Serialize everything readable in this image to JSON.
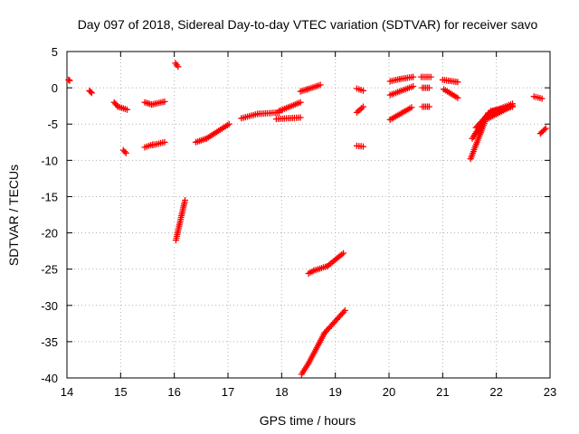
{
  "chart_data": {
    "type": "scatter",
    "title": "Day 097 of 2018, Sidereal Day-to-day VTEC variation (SDTVAR) for receiver savo",
    "xlabel": "GPS time / hours",
    "ylabel": "SDTVAR / TECUs",
    "xlim": [
      14,
      23
    ],
    "ylim": [
      -40,
      5
    ],
    "xticks": [
      "14",
      "15",
      "16",
      "17",
      "18",
      "19",
      "20",
      "21",
      "22",
      "23"
    ],
    "yticks": [
      "5",
      "0",
      "-5",
      "-10",
      "-15",
      "-20",
      "-25",
      "-30",
      "-35",
      "-40"
    ],
    "grid": true,
    "marker": "plus",
    "color": "#ff0000",
    "segments": [
      {
        "x0": 14.03,
        "x1": 14.05,
        "y0": 1.1,
        "y1": 1.0
      },
      {
        "x0": 14.42,
        "x1": 14.46,
        "y0": -0.4,
        "y1": -0.7
      },
      {
        "x0": 14.88,
        "x1": 14.95,
        "y0": -2.0,
        "y1": -2.6
      },
      {
        "x0": 14.95,
        "x1": 15.12,
        "y0": -2.6,
        "y1": -3.0
      },
      {
        "x0": 15.05,
        "x1": 15.1,
        "y0": -8.6,
        "y1": -9.0
      },
      {
        "x0": 15.45,
        "x1": 15.58,
        "y0": -2.0,
        "y1": -2.3
      },
      {
        "x0": 15.58,
        "x1": 15.82,
        "y0": -2.3,
        "y1": -1.9
      },
      {
        "x0": 15.45,
        "x1": 15.6,
        "y0": -8.2,
        "y1": -7.8
      },
      {
        "x0": 15.6,
        "x1": 15.82,
        "y0": -7.9,
        "y1": -7.5
      },
      {
        "x0": 16.02,
        "x1": 16.07,
        "y0": 3.4,
        "y1": 2.9
      },
      {
        "x0": 16.03,
        "x1": 16.2,
        "y0": -21.0,
        "y1": -15.5
      },
      {
        "x0": 16.4,
        "x1": 16.6,
        "y0": -7.5,
        "y1": -7.0
      },
      {
        "x0": 16.6,
        "x1": 17.02,
        "y0": -7.0,
        "y1": -5.0
      },
      {
        "x0": 17.25,
        "x1": 17.55,
        "y0": -4.2,
        "y1": -3.6
      },
      {
        "x0": 17.55,
        "x1": 17.95,
        "y0": -3.6,
        "y1": -3.4
      },
      {
        "x0": 17.95,
        "x1": 18.35,
        "y0": -3.2,
        "y1": -2.0
      },
      {
        "x0": 17.9,
        "x1": 18.35,
        "y0": -4.3,
        "y1": -4.1
      },
      {
        "x0": 18.35,
        "x1": 18.48,
        "y0": -0.5,
        "y1": -0.2
      },
      {
        "x0": 18.48,
        "x1": 18.72,
        "y0": -0.2,
        "y1": 0.4
      },
      {
        "x0": 18.5,
        "x1": 18.6,
        "y0": -25.6,
        "y1": -25.2
      },
      {
        "x0": 18.6,
        "x1": 18.85,
        "y0": -25.2,
        "y1": -24.6
      },
      {
        "x0": 18.85,
        "x1": 19.15,
        "y0": -24.6,
        "y1": -22.8
      },
      {
        "x0": 18.37,
        "x1": 18.5,
        "y0": -39.5,
        "y1": -38.0
      },
      {
        "x0": 18.5,
        "x1": 18.8,
        "y0": -38.0,
        "y1": -33.8
      },
      {
        "x0": 18.8,
        "x1": 19.18,
        "y0": -33.8,
        "y1": -30.7
      },
      {
        "x0": 19.4,
        "x1": 19.52,
        "y0": -0.1,
        "y1": -0.4
      },
      {
        "x0": 19.4,
        "x1": 19.52,
        "y0": -3.4,
        "y1": -2.6
      },
      {
        "x0": 19.4,
        "x1": 19.52,
        "y0": -8.0,
        "y1": -8.1
      },
      {
        "x0": 20.02,
        "x1": 20.2,
        "y0": 0.9,
        "y1": 1.2
      },
      {
        "x0": 20.2,
        "x1": 20.45,
        "y0": 1.2,
        "y1": 1.5
      },
      {
        "x0": 20.02,
        "x1": 20.45,
        "y0": -1.0,
        "y1": 0.2
      },
      {
        "x0": 20.02,
        "x1": 20.42,
        "y0": -4.4,
        "y1": -2.7
      },
      {
        "x0": 20.6,
        "x1": 20.78,
        "y0": 1.5,
        "y1": 1.5
      },
      {
        "x0": 20.62,
        "x1": 20.75,
        "y0": 0.0,
        "y1": 0.0
      },
      {
        "x0": 20.62,
        "x1": 20.75,
        "y0": -2.6,
        "y1": -2.6
      },
      {
        "x0": 21.0,
        "x1": 21.28,
        "y0": 1.1,
        "y1": 0.8
      },
      {
        "x0": 21.02,
        "x1": 21.28,
        "y0": -0.2,
        "y1": -1.4
      },
      {
        "x0": 21.52,
        "x1": 21.8,
        "y0": -9.8,
        "y1": -4.4
      },
      {
        "x0": 21.8,
        "x1": 22.3,
        "y0": -4.4,
        "y1": -2.5
      },
      {
        "x0": 21.55,
        "x1": 21.85,
        "y0": -7.0,
        "y1": -3.5
      },
      {
        "x0": 21.85,
        "x1": 22.3,
        "y0": -3.5,
        "y1": -2.2
      },
      {
        "x0": 21.62,
        "x1": 21.9,
        "y0": -5.5,
        "y1": -3.2
      },
      {
        "x0": 21.9,
        "x1": 22.3,
        "y0": -3.2,
        "y1": -2.6
      },
      {
        "x0": 22.7,
        "x1": 22.85,
        "y0": -1.2,
        "y1": -1.5
      },
      {
        "x0": 22.82,
        "x1": 22.92,
        "y0": -6.3,
        "y1": -5.6
      }
    ]
  }
}
